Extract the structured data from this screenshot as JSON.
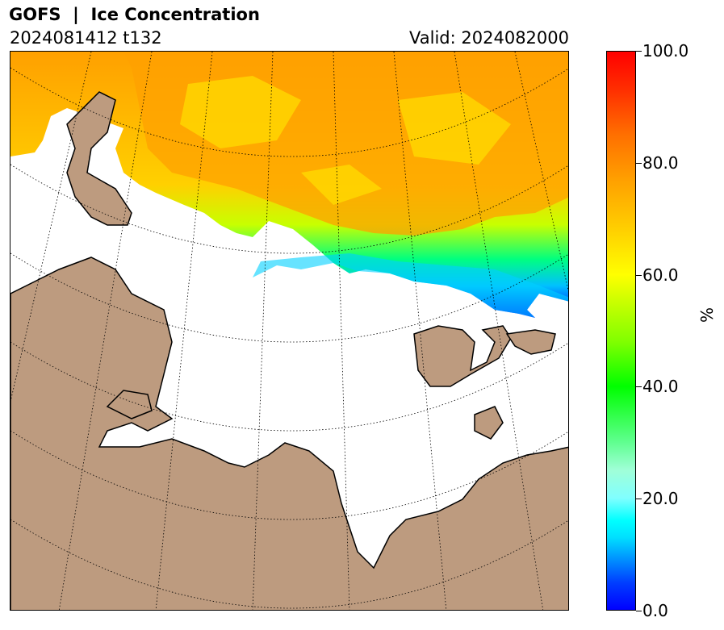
{
  "header": {
    "title": "GOFS  |  Ice Concentration",
    "run": "2024081412 t132",
    "valid": "Valid: 2024082000"
  },
  "colorbar": {
    "ticks": [
      "0.0",
      "20.0",
      "40.0",
      "60.0",
      "80.0",
      "100.0"
    ],
    "unit": "%",
    "range": [
      0,
      100
    ],
    "colors": {
      "low": "#0000ff",
      "mid": "#00ff00",
      "high": "#ff0000"
    }
  },
  "map": {
    "land_color": "#bd9b7f",
    "ocean_color": "#ffffff",
    "graticule": "dotted"
  }
}
